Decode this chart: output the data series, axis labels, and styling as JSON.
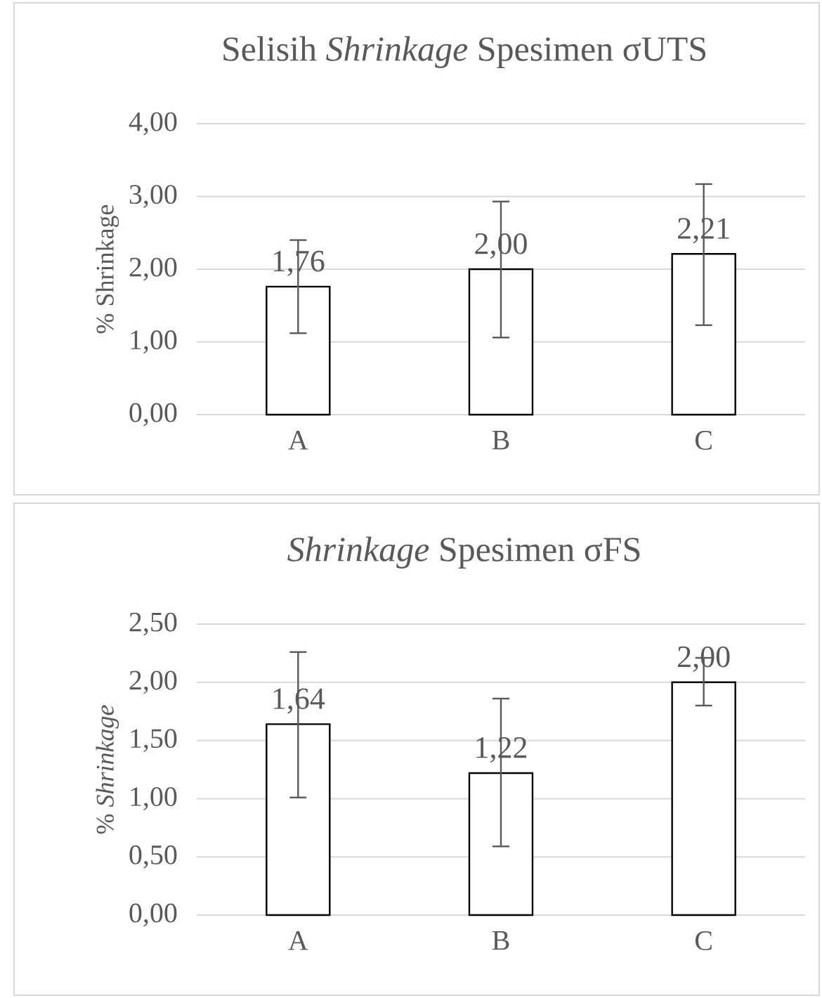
{
  "chart_data": [
    {
      "type": "bar",
      "title": "Selisih *Shrinkage* Spesimen σUTS",
      "ylabel": "% Shrinkage",
      "categories": [
        "A",
        "B",
        "C"
      ],
      "values": [
        1.76,
        2.0,
        2.21
      ],
      "value_labels": [
        "1,76",
        "2,00",
        "2,21"
      ],
      "errors": [
        [
          1.12,
          2.4
        ],
        [
          1.06,
          2.93
        ],
        [
          1.23,
          3.17
        ]
      ],
      "color": "#ffffff",
      "ylim": [
        0,
        4
      ],
      "yticks": [
        {
          "value": 0,
          "label": "0,00"
        },
        {
          "value": 1,
          "label": "1,00"
        },
        {
          "value": 2,
          "label": "2,00"
        },
        {
          "value": 3,
          "label": "3,00"
        },
        {
          "value": 4,
          "label": "4,00"
        }
      ],
      "grid": "y"
    },
    {
      "type": "bar",
      "title": "*Shrinkage* Spesimen σFS",
      "ylabel": "% *Shrinkage*",
      "categories": [
        "A",
        "B",
        "C"
      ],
      "values": [
        1.64,
        1.22,
        2.0
      ],
      "value_labels": [
        "1,64",
        "1,22",
        "2,00"
      ],
      "errors": [
        [
          1.01,
          2.26
        ],
        [
          0.59,
          1.86
        ],
        [
          1.8,
          2.21
        ]
      ],
      "color": "#ffffff",
      "ylim": [
        0,
        2.5
      ],
      "yticks": [
        {
          "value": 0,
          "label": "0,00"
        },
        {
          "value": 0.5,
          "label": "0,50"
        },
        {
          "value": 1,
          "label": "1,00"
        },
        {
          "value": 1.5,
          "label": "1,50"
        },
        {
          "value": 2,
          "label": "2,00"
        },
        {
          "value": 2.5,
          "label": "2,50"
        }
      ],
      "grid": "y"
    }
  ]
}
